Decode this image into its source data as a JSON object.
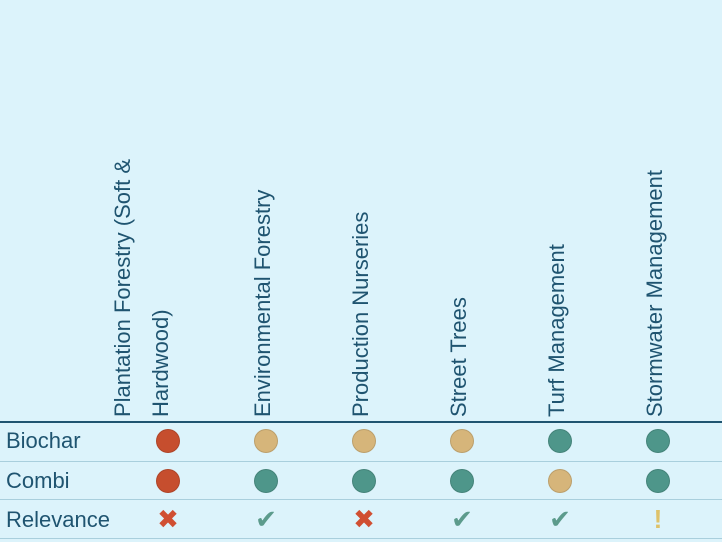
{
  "columns": [
    {
      "line1": "Plantation Forestry (Soft &",
      "line2": "Hardwood)"
    },
    {
      "line1": "Environmental Forestry",
      "line2": ""
    },
    {
      "line1": "Production Nurseries",
      "line2": ""
    },
    {
      "line1": "Street Trees",
      "line2": ""
    },
    {
      "line1": "Turf Management",
      "line2": ""
    },
    {
      "line1": "Stormwater Management",
      "line2": ""
    }
  ],
  "rows": [
    {
      "label": "Biochar",
      "ratings": [
        "red",
        "yellow",
        "yellow",
        "yellow",
        "green",
        "green"
      ]
    },
    {
      "label": "Combi",
      "ratings": [
        "red",
        "green",
        "green",
        "green",
        "yellow",
        "green"
      ]
    },
    {
      "label": "Relevance",
      "marks": [
        "cross",
        "check",
        "cross",
        "check",
        "check",
        "exclaim"
      ]
    }
  ],
  "colors": {
    "red": "#c64e2e",
    "yellow": "#d6b57a",
    "green": "#4e968a",
    "cross": "#d04f32",
    "check": "#5c9b8c",
    "exclaim": "#dec26a",
    "text": "#1f5470",
    "background": "#dcf3fb"
  }
}
